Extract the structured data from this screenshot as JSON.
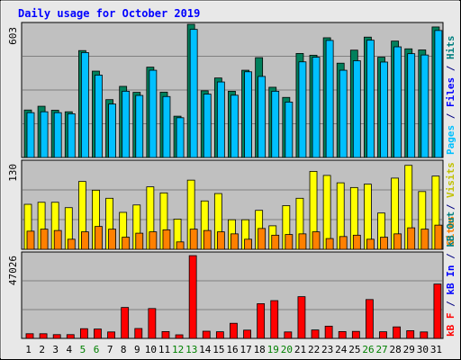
{
  "chart_data": {
    "type": "bar",
    "title": "Daily usage for October 2019",
    "days": [
      "1",
      "2",
      "3",
      "4",
      "5",
      "6",
      "7",
      "8",
      "9",
      "10",
      "11",
      "12",
      "13",
      "14",
      "15",
      "16",
      "17",
      "18",
      "19",
      "20",
      "21",
      "22",
      "23",
      "24",
      "25",
      "26",
      "27",
      "28",
      "29",
      "30",
      "31"
    ],
    "weekend_days": [
      "5",
      "6",
      "12",
      "13",
      "19",
      "20",
      "26",
      "27"
    ],
    "panels": [
      {
        "id": "hits_files_pages",
        "ymax_label": "603",
        "ylim": [
          0,
          603
        ],
        "series": [
          {
            "name": "Hits",
            "color": "#00805c",
            "values": [
              215,
              232,
              214,
              207,
              484,
              391,
              262,
              322,
              295,
              409,
              296,
              187,
              603,
              302,
              360,
              300,
              395,
              452,
              318,
              272,
              471,
              463,
              542,
              427,
              486,
              545,
              454,
              527,
              492,
              487,
              591
            ]
          },
          {
            "name": "Files",
            "color": "#00c0ff",
            "values": [
              203,
              207,
              203,
              198,
              475,
              373,
              242,
              300,
              281,
              395,
              276,
              180,
              580,
              287,
              342,
              282,
              388,
              367,
              300,
              251,
              433,
              454,
              530,
              395,
              438,
              531,
              432,
              501,
              470,
              464,
              575
            ]
          },
          {
            "name": "Pages",
            "color": "#00c0ff",
            "values": []
          }
        ]
      },
      {
        "id": "visits_sites",
        "ymax_label": "130",
        "ylim": [
          0,
          130
        ],
        "series": [
          {
            "name": "Visits",
            "color": "#ffff00",
            "values": [
              67,
              70,
              70,
              62,
              101,
              88,
              76,
              55,
              66,
              93,
              84,
              45,
              103,
              72,
              83,
              44,
              44,
              58,
              35,
              65,
              76,
              116,
              110,
              99,
              92,
              97,
              54,
              106,
              125,
              86,
              109
            ]
          },
          {
            "name": "Sites",
            "color": "#ff8000",
            "values": [
              27,
              30,
              28,
              15,
              26,
              34,
              30,
              18,
              24,
              26,
              29,
              11,
              30,
              28,
              26,
              23,
              15,
              31,
              21,
              22,
              23,
              26,
              16,
              19,
              21,
              15,
              18,
              23,
              32,
              30,
              36
            ]
          }
        ]
      },
      {
        "id": "kb",
        "ymax_label": "47026",
        "ylim": [
          0,
          47026
        ],
        "series": [
          {
            "name": "kB F",
            "color": "#ff0000",
            "values": [
              2600,
              2600,
              2100,
              2100,
              5400,
              5200,
              3600,
              17200,
              5500,
              16600,
              3800,
              2000,
              46000,
              4000,
              3700,
              8400,
              4600,
              19300,
              21000,
              3600,
              23200,
              4700,
              6800,
              3800,
              3900,
              21600,
              3700,
              6400,
              4300,
              3600,
              30200
            ]
          },
          {
            "name": "kB In",
            "color": "#0000ff",
            "values": []
          },
          {
            "name": "kB Out",
            "color": "#008080",
            "values": []
          }
        ]
      }
    ],
    "legend_top": [
      {
        "text": "Pages",
        "color": "#00c0ff"
      },
      {
        "text": "/",
        "color": "#000080"
      },
      {
        "text": "Files",
        "color": "#0000ff"
      },
      {
        "text": "/",
        "color": "#000080"
      },
      {
        "text": "Hits",
        "color": "#008080"
      }
    ],
    "legend_mid": [
      {
        "text": "Sites",
        "color": "#ff8000"
      },
      {
        "text": "/",
        "color": "#000080"
      },
      {
        "text": "Visits",
        "color": "#c0c000"
      }
    ],
    "legend_bottom": [
      {
        "text": "kB F",
        "color": "#ff0000"
      },
      {
        "text": "/",
        "color": "#000080"
      },
      {
        "text": "kB In",
        "color": "#0000ff"
      },
      {
        "text": "/",
        "color": "#000080"
      },
      {
        "text": "kB Out",
        "color": "#008080"
      }
    ],
    "colors": {
      "panel_bg": "#c0c0c0",
      "grid": "#808080",
      "title": "#0000ff",
      "weekday_label": "#000000",
      "weekend_label": "#008000"
    }
  }
}
